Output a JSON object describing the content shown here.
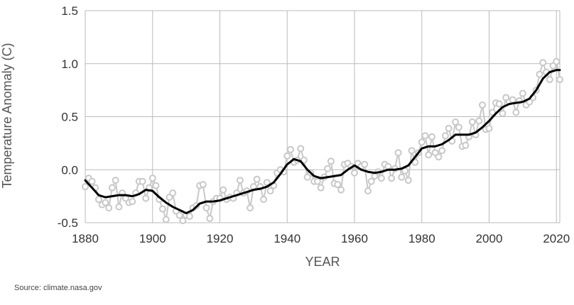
{
  "chart_data": {
    "type": "line",
    "xlabel": "YEAR",
    "ylabel": "Temperature Anomaly (C)",
    "xlim": [
      1880,
      2021
    ],
    "ylim": [
      -0.5,
      1.5
    ],
    "x_ticks": [
      1880,
      1900,
      1920,
      1940,
      1960,
      1980,
      2000,
      2020
    ],
    "y_ticks": [
      "-0.5",
      "0.0",
      "0.5",
      "1.0",
      "1.5"
    ],
    "y_tick_values": [
      -0.5,
      0.0,
      0.5,
      1.0,
      1.5
    ],
    "grid": true,
    "colors": {
      "annual": "#c8c8c8",
      "smooth": "#000000",
      "grid": "#bbbbbb"
    },
    "series": [
      {
        "style": "annual-markers",
        "x": [
          1880,
          1881,
          1882,
          1883,
          1884,
          1885,
          1886,
          1887,
          1888,
          1889,
          1890,
          1891,
          1892,
          1893,
          1894,
          1895,
          1896,
          1897,
          1898,
          1899,
          1900,
          1901,
          1902,
          1903,
          1904,
          1905,
          1906,
          1907,
          1908,
          1909,
          1910,
          1911,
          1912,
          1913,
          1914,
          1915,
          1916,
          1917,
          1918,
          1919,
          1920,
          1921,
          1922,
          1923,
          1924,
          1925,
          1926,
          1927,
          1928,
          1929,
          1930,
          1931,
          1932,
          1933,
          1934,
          1935,
          1936,
          1937,
          1938,
          1939,
          1940,
          1941,
          1942,
          1943,
          1944,
          1945,
          1946,
          1947,
          1948,
          1949,
          1950,
          1951,
          1952,
          1953,
          1954,
          1955,
          1956,
          1957,
          1958,
          1959,
          1960,
          1961,
          1962,
          1963,
          1964,
          1965,
          1966,
          1967,
          1968,
          1969,
          1970,
          1971,
          1972,
          1973,
          1974,
          1975,
          1976,
          1977,
          1978,
          1979,
          1980,
          1981,
          1982,
          1983,
          1984,
          1985,
          1986,
          1987,
          1988,
          1989,
          1990,
          1991,
          1992,
          1993,
          1994,
          1995,
          1996,
          1997,
          1998,
          1999,
          2000,
          2001,
          2002,
          2003,
          2004,
          2005,
          2006,
          2007,
          2008,
          2009,
          2010,
          2011,
          2012,
          2013,
          2014,
          2015,
          2016,
          2017,
          2018,
          2019,
          2020,
          2021
        ],
        "y": [
          -0.16,
          -0.08,
          -0.11,
          -0.17,
          -0.28,
          -0.33,
          -0.31,
          -0.36,
          -0.17,
          -0.1,
          -0.35,
          -0.22,
          -0.27,
          -0.31,
          -0.3,
          -0.22,
          -0.11,
          -0.11,
          -0.27,
          -0.17,
          -0.08,
          -0.15,
          -0.28,
          -0.37,
          -0.47,
          -0.26,
          -0.22,
          -0.39,
          -0.43,
          -0.48,
          -0.43,
          -0.44,
          -0.36,
          -0.34,
          -0.15,
          -0.14,
          -0.36,
          -0.46,
          -0.3,
          -0.27,
          -0.27,
          -0.19,
          -0.28,
          -0.26,
          -0.27,
          -0.22,
          -0.1,
          -0.22,
          -0.2,
          -0.36,
          -0.16,
          -0.09,
          -0.16,
          -0.28,
          -0.12,
          -0.2,
          -0.15,
          -0.03,
          0.0,
          -0.02,
          0.13,
          0.19,
          0.07,
          0.09,
          0.2,
          0.09,
          -0.07,
          -0.03,
          -0.11,
          -0.11,
          -0.17,
          -0.07,
          0.01,
          0.08,
          -0.13,
          -0.14,
          -0.19,
          0.05,
          0.06,
          0.03,
          -0.03,
          0.06,
          0.03,
          0.05,
          -0.2,
          -0.11,
          -0.06,
          -0.02,
          -0.08,
          0.05,
          0.03,
          -0.08,
          0.01,
          0.16,
          -0.07,
          -0.01,
          -0.1,
          0.18,
          0.07,
          0.16,
          0.26,
          0.32,
          0.14,
          0.31,
          0.16,
          0.12,
          0.18,
          0.32,
          0.39,
          0.27,
          0.45,
          0.4,
          0.22,
          0.23,
          0.31,
          0.45,
          0.33,
          0.46,
          0.61,
          0.38,
          0.39,
          0.54,
          0.63,
          0.62,
          0.53,
          0.68,
          0.64,
          0.66,
          0.54,
          0.65,
          0.72,
          0.61,
          0.64,
          0.68,
          0.75,
          0.9,
          1.01,
          0.92,
          0.85,
          0.98,
          1.02,
          0.85
        ]
      },
      {
        "style": "smoothed-line",
        "x": [
          1880,
          1882,
          1884,
          1886,
          1888,
          1890,
          1892,
          1894,
          1896,
          1898,
          1900,
          1902,
          1904,
          1906,
          1908,
          1910,
          1912,
          1914,
          1916,
          1918,
          1920,
          1922,
          1924,
          1926,
          1928,
          1930,
          1932,
          1934,
          1936,
          1938,
          1940,
          1942,
          1944,
          1946,
          1948,
          1950,
          1952,
          1954,
          1956,
          1958,
          1960,
          1962,
          1964,
          1966,
          1968,
          1970,
          1972,
          1974,
          1976,
          1978,
          1980,
          1982,
          1984,
          1986,
          1988,
          1990,
          1992,
          1994,
          1996,
          1998,
          2000,
          2002,
          2004,
          2006,
          2008,
          2010,
          2012,
          2014,
          2016,
          2018,
          2020,
          2021
        ],
        "y": [
          -0.1,
          -0.17,
          -0.24,
          -0.26,
          -0.25,
          -0.24,
          -0.24,
          -0.25,
          -0.23,
          -0.19,
          -0.2,
          -0.26,
          -0.31,
          -0.35,
          -0.38,
          -0.41,
          -0.38,
          -0.32,
          -0.3,
          -0.3,
          -0.29,
          -0.27,
          -0.25,
          -0.23,
          -0.21,
          -0.19,
          -0.18,
          -0.16,
          -0.12,
          -0.04,
          0.05,
          0.1,
          0.08,
          0.0,
          -0.06,
          -0.08,
          -0.07,
          -0.06,
          -0.05,
          0.0,
          0.04,
          0.0,
          -0.02,
          -0.03,
          -0.02,
          0.0,
          0.0,
          0.01,
          0.04,
          0.12,
          0.2,
          0.22,
          0.22,
          0.24,
          0.28,
          0.33,
          0.33,
          0.33,
          0.35,
          0.4,
          0.46,
          0.53,
          0.59,
          0.62,
          0.63,
          0.64,
          0.67,
          0.75,
          0.86,
          0.92,
          0.94,
          0.94
        ]
      }
    ]
  },
  "source": "Source: climate.nasa.gov"
}
